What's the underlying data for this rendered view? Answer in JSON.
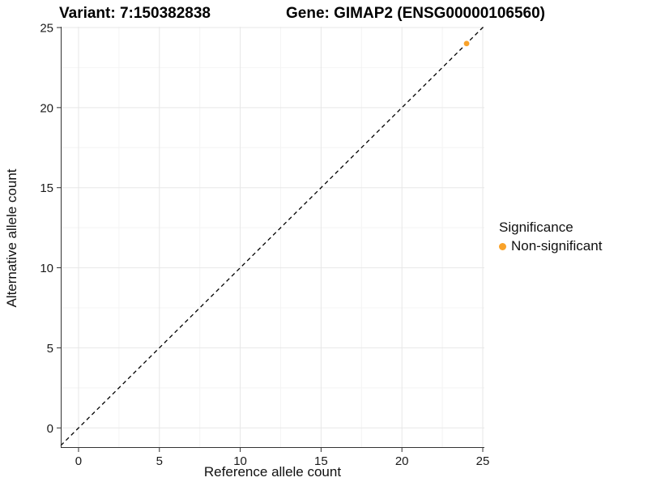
{
  "titles": {
    "variant": "Variant: 7:150382838",
    "gene": "Gene: GIMAP2 (ENSG00000106560)"
  },
  "axes": {
    "x_label": "Reference allele count",
    "y_label": "Alternative allele count"
  },
  "legend": {
    "title": "Significance",
    "items": [
      {
        "label": "Non-significant",
        "color": "#F9A229"
      }
    ]
  },
  "chart_data": {
    "type": "scatter",
    "title": "Variant: 7:150382838 | Gene: GIMAP2 (ENSG00000106560)",
    "xlabel": "Reference allele count",
    "ylabel": "Alternative allele count",
    "x_ticks": [
      0,
      5,
      10,
      15,
      20,
      25
    ],
    "y_ticks": [
      0,
      5,
      10,
      15,
      20,
      25
    ],
    "x_minor_ticks": [
      2.5,
      7.5,
      12.5,
      17.5,
      22.5
    ],
    "y_minor_ticks": [
      2.5,
      7.5,
      12.5,
      17.5,
      22.5
    ],
    "xlim": [
      -1.1,
      25.1
    ],
    "ylim": [
      -1.25,
      25.05
    ],
    "grid": "major+minor",
    "legend_position": "right",
    "identity_line": {
      "style": "dashed",
      "slope": 1,
      "intercept": 0,
      "color": "#000000"
    },
    "series": [
      {
        "name": "Non-significant",
        "color": "#F9A229",
        "points": [
          {
            "x": 24,
            "y": 24
          }
        ]
      }
    ],
    "style_colors": {
      "major_grid": "#E7E7E7",
      "minor_grid": "#F4F4F4",
      "axis_line": "#333333",
      "tick_mark": "#333333"
    }
  }
}
